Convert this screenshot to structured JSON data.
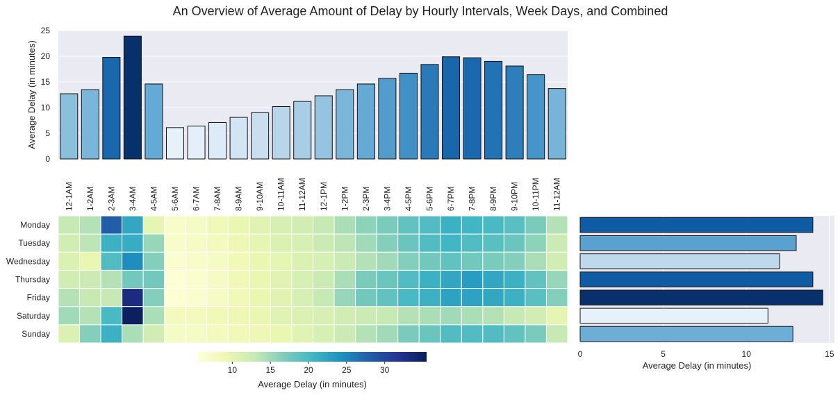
{
  "chart_data": [
    {
      "type": "bar",
      "title": "An Overview of Average Amount of  Delay by Hourly Intervals, Week Days, and Combined",
      "ylabel": "Average Delay (in minutes)",
      "ylim": [
        0,
        25
      ],
      "yticks": [
        0,
        5,
        10,
        15,
        20,
        25
      ],
      "grid": true,
      "categories": [
        "12-1AM",
        "1-2AM",
        "2-3AM",
        "3-4AM",
        "4-5AM",
        "5-6AM",
        "6-7AM",
        "7-8AM",
        "8-9AM",
        "9-10AM",
        "10-11AM",
        "11-12AM",
        "12-1PM",
        "1-2PM",
        "2-3PM",
        "3-4PM",
        "4-5PM",
        "5-6PM",
        "6-7PM",
        "7-8PM",
        "8-9PM",
        "9-10PM",
        "10-11PM",
        "11-12AM"
      ],
      "values": [
        12.7,
        13.5,
        19.8,
        23.9,
        14.6,
        6.1,
        6.4,
        7.1,
        8.1,
        9.0,
        10.2,
        11.2,
        12.3,
        13.5,
        14.6,
        15.7,
        16.7,
        18.4,
        19.9,
        19.7,
        19.0,
        18.1,
        16.4,
        13.7
      ]
    },
    {
      "type": "heatmap",
      "rows": [
        "Monday",
        "Tuesday",
        "Wednesday",
        "Thursday",
        "Friday",
        "Saturday",
        "Sunday"
      ],
      "columns": [
        "12-1AM",
        "1-2AM",
        "2-3AM",
        "3-4AM",
        "4-5AM",
        "5-6AM",
        "6-7AM",
        "7-8AM",
        "8-9AM",
        "9-10AM",
        "10-11AM",
        "11-12AM",
        "12-1PM",
        "1-2PM",
        "2-3PM",
        "3-4PM",
        "4-5PM",
        "5-6PM",
        "6-7PM",
        "7-8PM",
        "8-9PM",
        "9-10PM",
        "10-11PM",
        "11-12AM"
      ],
      "values": [
        [
          13.0,
          14.0,
          28.0,
          22.0,
          10.0,
          7.0,
          7.5,
          8.5,
          9.5,
          10.5,
          11.5,
          12.0,
          13.0,
          14.5,
          16.0,
          17.0,
          18.5,
          19.5,
          21.0,
          20.5,
          20.0,
          19.0,
          17.0,
          14.0
        ],
        [
          12.0,
          13.5,
          21.0,
          21.5,
          15.5,
          7.0,
          7.5,
          8.0,
          9.0,
          10.0,
          11.0,
          11.5,
          12.5,
          13.5,
          15.0,
          16.5,
          18.0,
          19.5,
          20.5,
          19.5,
          19.0,
          18.0,
          16.0,
          12.5
        ],
        [
          11.0,
          9.5,
          19.5,
          24.5,
          16.5,
          6.5,
          7.0,
          7.5,
          8.5,
          9.5,
          10.0,
          11.0,
          11.5,
          12.5,
          14.0,
          15.0,
          16.5,
          17.5,
          18.5,
          17.5,
          17.0,
          16.5,
          14.5,
          12.0
        ],
        [
          12.0,
          12.5,
          14.0,
          17.5,
          17.5,
          6.0,
          6.5,
          7.5,
          8.5,
          9.5,
          10.5,
          11.5,
          12.5,
          14.5,
          17.0,
          18.0,
          19.5,
          21.0,
          22.0,
          23.0,
          22.0,
          21.0,
          18.5,
          15.5
        ],
        [
          14.0,
          13.0,
          13.0,
          33.0,
          16.5,
          6.0,
          6.5,
          7.5,
          8.5,
          9.5,
          10.5,
          11.5,
          13.0,
          15.5,
          17.5,
          18.5,
          20.0,
          21.0,
          22.5,
          22.5,
          22.0,
          21.0,
          19.0,
          16.5
        ],
        [
          15.0,
          14.0,
          20.0,
          35.0,
          14.5,
          8.0,
          8.0,
          8.5,
          9.0,
          9.5,
          10.5,
          11.0,
          11.5,
          12.0,
          12.5,
          13.0,
          14.0,
          14.5,
          15.0,
          14.5,
          14.0,
          13.0,
          12.0,
          10.0
        ],
        [
          11.0,
          16.5,
          21.0,
          14.5,
          12.0,
          7.5,
          7.5,
          8.0,
          8.5,
          9.0,
          9.5,
          10.5,
          11.5,
          12.5,
          14.0,
          15.0,
          17.0,
          18.0,
          19.5,
          19.5,
          19.5,
          18.5,
          17.0,
          13.0
        ]
      ],
      "colorbar": {
        "label": "Average Delay (in minutes)",
        "ticks": [
          10,
          15,
          20,
          25,
          30
        ],
        "range": [
          5.5,
          35.5
        ],
        "colormap": "YlGnBu"
      }
    },
    {
      "type": "bar",
      "orientation": "horizontal",
      "categories": [
        "Monday",
        "Tuesday",
        "Wednesday",
        "Thursday",
        "Friday",
        "Saturday",
        "Sunday"
      ],
      "values": [
        14.0,
        13.0,
        12.0,
        14.0,
        14.6,
        11.3,
        12.8
      ],
      "xlabel": "Average Delay (in minutes)",
      "xlim": [
        0,
        15.3
      ],
      "xticks": [
        0,
        5,
        10,
        15
      ],
      "grid": true
    }
  ]
}
